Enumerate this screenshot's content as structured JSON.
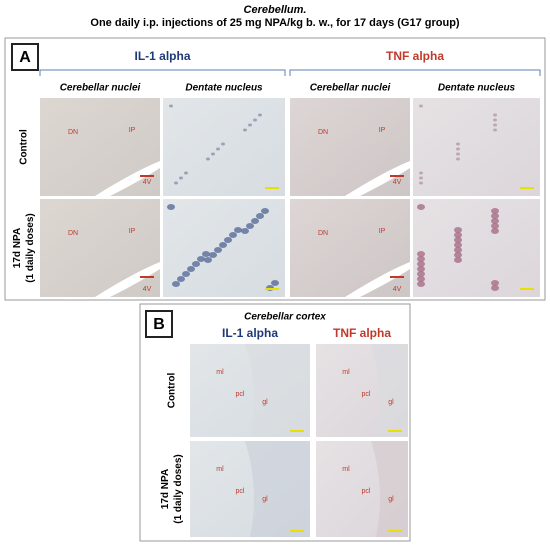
{
  "header": {
    "title": "Cerebellum.",
    "subtitle": "One daily i.p. injections of 25 mg NPA/kg b. w., for 17 days  (G17 group)"
  },
  "panel_a": {
    "label": "A",
    "groups": [
      "IL-1 alpha",
      "TNF alpha"
    ],
    "columns": [
      "Cerebellar nuclei",
      "Dentate nucleus",
      "Cerebellar nuclei",
      "Dentate nucleus"
    ],
    "rows": [
      [
        "Control"
      ],
      [
        "17d NPA",
        "(1 daily doses)"
      ]
    ],
    "annotations": [
      "DN",
      "IP",
      "4V"
    ]
  },
  "panel_b": {
    "label": "B",
    "title": "Cerebellar cortex",
    "columns": [
      "IL-1 alpha",
      "TNF alpha"
    ],
    "rows": [
      [
        "Control"
      ],
      [
        "17d NPA",
        "(1 daily doses)"
      ]
    ],
    "annotations": [
      "ml",
      "pcl",
      "gl"
    ]
  }
}
